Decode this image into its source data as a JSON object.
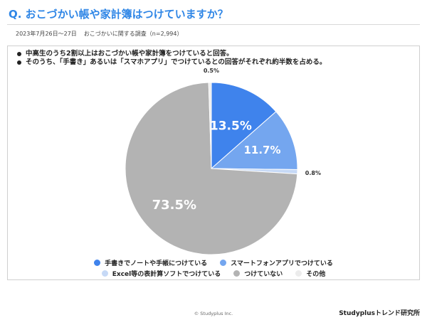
{
  "header": {
    "title": "Q. おこづかい帳や家計簿はつけていますか？",
    "survey_date": "2023年7月26日〜27日",
    "survey_name": "おこづかいに関する調査（n=2,994）"
  },
  "summary": {
    "bullets": [
      "中高生のうち2割以上はおこづかい帳や家計簿をつけていると回答。",
      "そのうち、「手書き」あるいは「スマホアプリ」でつけているとの回答がそれぞれ約半数を占める。"
    ]
  },
  "chart_data": {
    "type": "pie",
    "start_angle_deg": 0,
    "direction": "clockwise",
    "slices": [
      {
        "label": "手書きでノートや手帳につけている",
        "value": 13.5,
        "display": "13.5%",
        "color": "#3f83ec"
      },
      {
        "label": "スマートフォンアプリでつけている",
        "value": 11.7,
        "display": "11.7%",
        "color": "#74a6ef"
      },
      {
        "label": "Excel等の表計算ソフトでつけている",
        "value": 0.8,
        "display": "0.8%",
        "color": "#c6d9f6"
      },
      {
        "label": "つけていない",
        "value": 73.5,
        "display": "73.5%",
        "color": "#b3b3b3"
      },
      {
        "label": "その他",
        "value": 0.5,
        "display": "0.5%",
        "color": "#ececec"
      }
    ],
    "legend": {
      "placement": "bottom"
    }
  },
  "footer": {
    "copyright": "© Studyplus Inc.",
    "brand": "Studyplusトレンド研究所"
  }
}
